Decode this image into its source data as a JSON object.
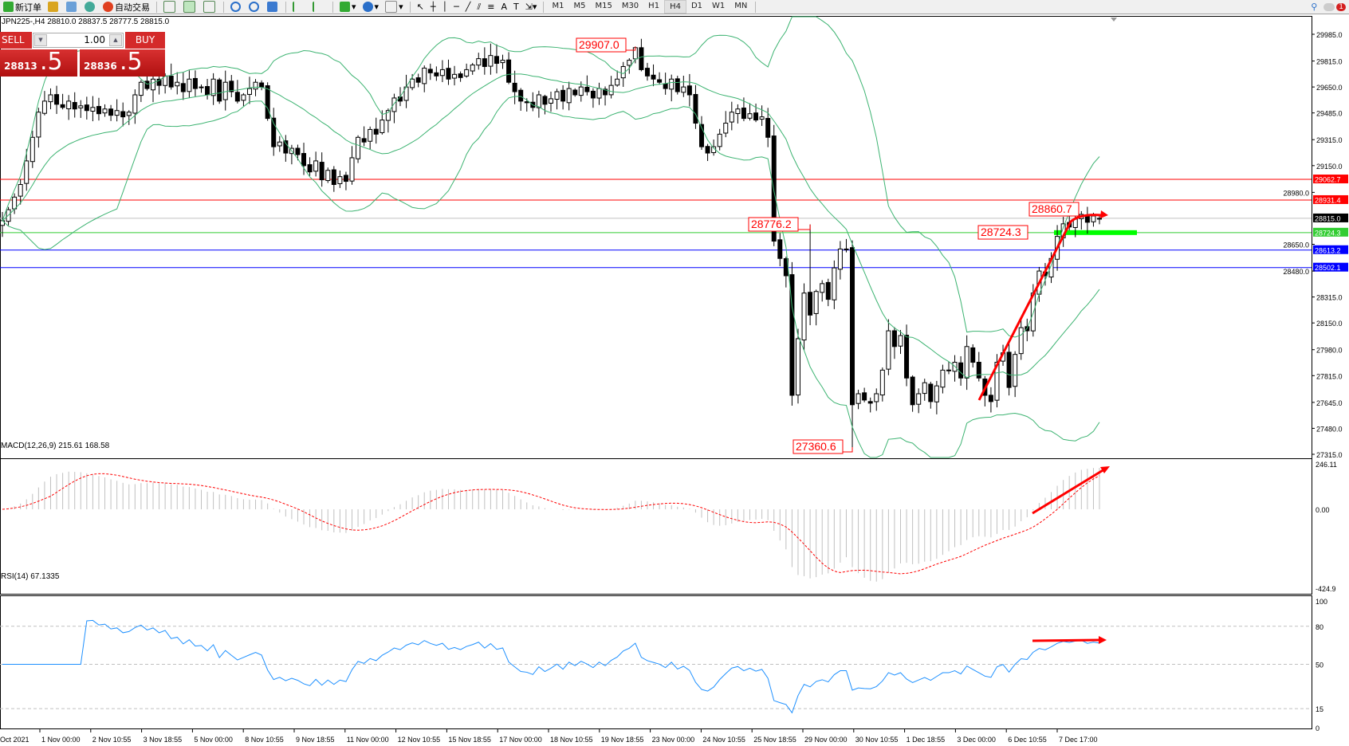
{
  "toolbar": {
    "new_order": "新订单",
    "auto_trading": "自动交易",
    "timeframes": [
      "M1",
      "M5",
      "M15",
      "M30",
      "H1",
      "H4",
      "D1",
      "W1",
      "MN"
    ],
    "active_timeframe": "H4",
    "notification_count": "1"
  },
  "chart": {
    "header": "JPN225-,H4  28810.0 28837.5 28777.5 28815.0",
    "price_ticks": [
      "29985.0",
      "29815.0",
      "29650.0",
      "29485.0",
      "29315.0",
      "29150.0",
      "28980.0",
      "28650.0",
      "28480.0",
      "28315.0",
      "28150.0",
      "27980.0",
      "27815.0",
      "27645.0",
      "27480.0",
      "27315.0"
    ],
    "levels": [
      {
        "value": "29062.7",
        "color": "#ff0000",
        "text_color": "#ffffff"
      },
      {
        "value": "28931.4",
        "color": "#ff0000",
        "text_color": "#ffffff"
      },
      {
        "value": "28815.0",
        "color": "#000000",
        "text_color": "#ffffff",
        "line_color": "#c0c0c0"
      },
      {
        "value": "28724.3",
        "color": "#32cd32",
        "text_color": "#ffffff"
      },
      {
        "value": "28613.2",
        "color": "#0000ff",
        "text_color": "#ffffff"
      },
      {
        "value": "28502.1",
        "color": "#0000ff",
        "text_color": "#ffffff"
      }
    ],
    "price_labels": {
      "high_1": "29907.0",
      "level_a": "28776.2",
      "low_1": "27360.6",
      "high_2": "28860.7",
      "level_b": "28724.3"
    },
    "colors": {
      "bollinger": "#3cb371",
      "arrow": "#ff0000",
      "support_bar": "#00ff00",
      "rsi": "#1e90ff",
      "macd_hist": "#c0c0c0",
      "macd_signal": "#ff0000"
    },
    "time_labels": [
      "Oct 2021",
      "1 Nov 00:00",
      "2 Nov 10:55",
      "3 Nov 18:55",
      "5 Nov 00:00",
      "8 Nov 10:55",
      "9 Nov 18:55",
      "11 Nov 00:00",
      "12 Nov 10:55",
      "15 Nov 18:55",
      "17 Nov 00:00",
      "18 Nov 10:55",
      "19 Nov 18:55",
      "23 Nov 00:00",
      "24 Nov 10:55",
      "25 Nov 18:55",
      "29 Nov 00:00",
      "30 Nov 10:55",
      "1 Dec 18:55",
      "3 Dec 00:00",
      "6 Dec 10:55",
      "7 Dec 17:00"
    ]
  },
  "trade_panel": {
    "sell": "SELL",
    "buy": "BUY",
    "lots": "1.00",
    "bid_small": "28813",
    "bid_big": ".5",
    "ask_small": "28836",
    "ask_big": ".5"
  },
  "macd": {
    "header": "MACD(12,26,9) 215.61 168.58",
    "ticks": [
      "246.11",
      "0.00",
      "-424.9"
    ]
  },
  "rsi": {
    "header": "RSI(14) 67.1335",
    "ticks": [
      "100",
      "80",
      "50",
      "15",
      "0"
    ]
  },
  "chart_data": {
    "type": "candlestick",
    "symbol": "JPN225-",
    "timeframe": "H4",
    "last_ohlc": {
      "open": 28810.0,
      "high": 28837.5,
      "low": 28777.5,
      "close": 28815.0
    },
    "ylim": [
      27315,
      29985
    ],
    "closes": [
      28800,
      28870,
      28950,
      29030,
      29180,
      29330,
      29490,
      29560,
      29600,
      29540,
      29520,
      29560,
      29510,
      29530,
      29500,
      29520,
      29480,
      29510,
      29470,
      29500,
      29460,
      29490,
      29600,
      29680,
      29640,
      29700,
      29660,
      29720,
      29650,
      29680,
      29620,
      29700,
      29640,
      29650,
      29600,
      29700,
      29560,
      29680,
      29620,
      29560,
      29600,
      29640,
      29680,
      29650,
      29450,
      29270,
      29300,
      29230,
      29260,
      29220,
      29150,
      29110,
      29180,
      29060,
      29120,
      29030,
      29080,
      29050,
      29200,
      29330,
      29300,
      29380,
      29350,
      29440,
      29500,
      29580,
      29560,
      29650,
      29700,
      29680,
      29770,
      29740,
      29720,
      29760,
      29700,
      29730,
      29710,
      29760,
      29790,
      29830,
      29780,
      29850,
      29800,
      29820,
      29680,
      29620,
      29560,
      29550,
      29520,
      29600,
      29540,
      29575,
      29620,
      29560,
      29640,
      29600,
      29650,
      29620,
      29580,
      29640,
      29600,
      29660,
      29700,
      29780,
      29820,
      29900,
      29760,
      29720,
      29700,
      29680,
      29640,
      29700,
      29620,
      29650,
      29600,
      29420,
      29270,
      29230,
      29270,
      29350,
      29420,
      29490,
      29510,
      29450,
      29480,
      29440,
      29460,
      29330,
      28670,
      28560,
      28450,
      27690,
      28050,
      28340,
      28200,
      28350,
      28400,
      28300,
      28500,
      28620,
      28620,
      27630,
      27700,
      27660,
      27640,
      27700,
      27850,
      28100,
      28000,
      28070,
      27800,
      27630,
      27700,
      27770,
      27650,
      27750,
      27850,
      27850,
      27900,
      27800,
      28000,
      27900,
      27800,
      27690,
      27650,
      27900,
      27960,
      27740,
      27950,
      28120,
      28100,
      28340,
      28480,
      28450,
      28560,
      28700,
      28780,
      28760,
      28810,
      28840,
      28790,
      28830,
      28815
    ],
    "indicators": [
      "Bollinger Bands(20,2)",
      "MACD(12,26,9)",
      "RSI(14)"
    ]
  }
}
